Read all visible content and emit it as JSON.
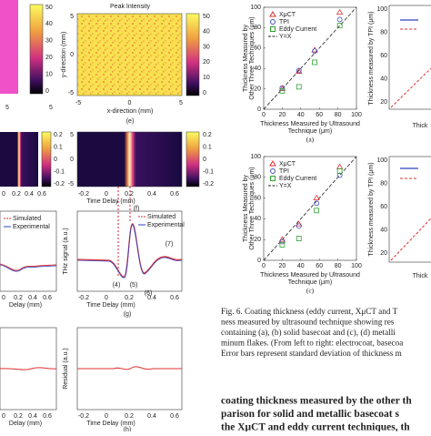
{
  "left_edge": {
    "x_ticks": [
      5,
      5
    ],
    "colorbar_ticks": [
      50,
      40,
      30,
      20,
      10,
      0
    ]
  },
  "panel_e": {
    "title": "Peak Intensity",
    "x_label": "x-direction (mm)",
    "y_label": "y-direction (mm)",
    "x_ticks": [
      -5,
      0,
      5
    ],
    "y_ticks": [
      5,
      0,
      -5
    ],
    "colorbar_ticks": [
      50,
      40,
      30,
      20,
      10,
      0
    ],
    "label": "(e)"
  },
  "left_edge_f": {
    "x_ticks": [
      0,
      0.2,
      0.4,
      0.6
    ],
    "colorbar_ticks": [
      0.2,
      0.1,
      0,
      -0.1,
      -0.2
    ]
  },
  "panel_f": {
    "x_label": "Time Delay (mm)",
    "x_ticks": [
      -0.2,
      0,
      0.2,
      0.4,
      0.6
    ],
    "y_ticks": [
      5,
      0,
      -5
    ],
    "colorbar_ticks": [
      0.2,
      0.1,
      0,
      -0.1,
      -0.2
    ],
    "label": "(f)"
  },
  "left_edge_g": {
    "legend": [
      "Simulated",
      "Experimental"
    ],
    "x_ticks": [
      0,
      0.2,
      0.4,
      0.6
    ],
    "x_label": "Delay (mm)"
  },
  "panel_g": {
    "y_label": "THz signal (a.u.)",
    "legend": [
      "Simulated",
      "Experimental"
    ],
    "peaks": [
      "(4)",
      "(5)",
      "(6)",
      "(7)"
    ],
    "x_ticks": [
      -0.2,
      0,
      0.2,
      0.4,
      0.6
    ],
    "x_label": "Time Delay (mm)",
    "label": "(g)"
  },
  "left_edge_h": {
    "x_ticks": [
      0,
      0.2,
      0.4,
      0.6
    ],
    "x_label": "Delay (mm)"
  },
  "panel_h": {
    "y_label": "Residual (a.u.)",
    "x_ticks": [
      -0.2,
      0,
      0.2,
      0.4,
      0.6
    ],
    "x_label": "Time Delay (mm)",
    "label": "(h)"
  },
  "panel_a": {
    "type": "scatter",
    "x_label": [
      "Thickness Measured by Ultrasound",
      "Technique (μm)"
    ],
    "y_label": [
      "Thickness Measured by",
      "Other Three Techniques (μm)"
    ],
    "xlim": [
      0,
      100
    ],
    "ylim": [
      0,
      100
    ],
    "xticks": [
      0,
      20,
      40,
      60,
      80,
      100
    ],
    "yticks": [
      0,
      20,
      40,
      60,
      80,
      100
    ],
    "line_label": "Y=X",
    "label": "(a)",
    "series": [
      {
        "name": "XμCT",
        "color": "#e03030",
        "marker": "triangle",
        "x": [
          20,
          38,
          55,
          82
        ],
        "values": [
          20,
          37,
          58,
          95
        ]
      },
      {
        "name": "TPI",
        "color": "#4050c0",
        "marker": "circle",
        "x": [
          20,
          38,
          55,
          82
        ],
        "values": [
          21,
          38,
          57,
          88
        ]
      },
      {
        "name": "Eddy Current",
        "color": "#30a030",
        "marker": "square",
        "x": [
          20,
          38,
          55,
          82
        ],
        "values": [
          18,
          22,
          46,
          82
        ]
      }
    ]
  },
  "panel_c": {
    "type": "scatter",
    "x_label": [
      "Thickness Measured by Ultrasound",
      "Technique (μm)"
    ],
    "y_label": [
      "Thickness Measured by",
      "Other Three Techniques (μm)"
    ],
    "xlim": [
      0,
      100
    ],
    "ylim": [
      0,
      100
    ],
    "xticks": [
      0,
      20,
      40,
      60,
      80,
      100
    ],
    "yticks": [
      0,
      20,
      40,
      60,
      80,
      100
    ],
    "line_label": "Y=X",
    "label": "(c)",
    "series": [
      {
        "name": "XμCT",
        "color": "#e03030",
        "marker": "triangle",
        "x": [
          20,
          38,
          57,
          82
        ],
        "values": [
          20,
          35,
          60,
          90
        ]
      },
      {
        "name": "TPI",
        "color": "#4050c0",
        "marker": "circle",
        "x": [
          20,
          38,
          57,
          82
        ],
        "values": [
          18,
          33,
          55,
          82
        ]
      },
      {
        "name": "Eddy Current",
        "color": "#30a030",
        "marker": "square",
        "x": [
          20,
          38,
          57,
          82
        ],
        "values": [
          15,
          21,
          48,
          86
        ]
      }
    ]
  },
  "panel_b": {
    "y_label": "Thickness measured by TPI (μm)",
    "y_ticks": [
      100,
      80,
      60,
      40,
      20
    ],
    "x_label": "Thick"
  },
  "panel_d": {
    "y_label": "Thickness measured by TPI (μm)",
    "y_ticks": [
      100,
      80,
      60,
      40,
      20
    ],
    "x_label": "Thick"
  },
  "caption": [
    "Fig. 6.   Coating thickness (eddy current, XμCT and T",
    "ness measured by ultrasound technique showing res",
    "containing (a), (b) solid basecoat and (c), (d) metalli",
    "minum flakes. (From left to right: electrocoat, basecoa",
    "Error bars represent standard deviation of thickness m"
  ],
  "body": [
    "coating thickness measured by the other th",
    "parison for solid and metallic basecoat s",
    "the XμCT and eddy current techniques, th"
  ]
}
